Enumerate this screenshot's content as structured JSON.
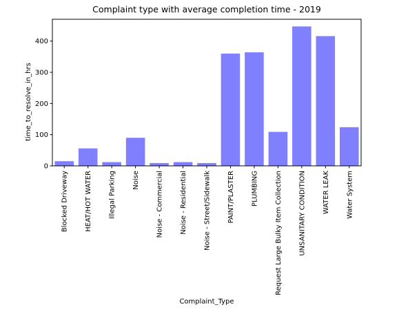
{
  "chart_data": {
    "type": "bar",
    "title": "Complaint type with average completion time - 2019",
    "xlabel": "Complaint_Type",
    "ylabel": "time_to_resolve_in_hrs",
    "ylim": [
      0,
      470
    ],
    "yticks": [
      0,
      100,
      200,
      300,
      400
    ],
    "grid": false,
    "bar_color": "#8080ff",
    "categories": [
      "Blocked Driveway",
      "HEAT/HOT WATER",
      "Illegal Parking",
      "Noise",
      "Noise - Commercial",
      "Noise - Residential",
      "Noise - Street/Sidewalk",
      "PAINT/PLASTER",
      "PLUMBING",
      "Request Large Bulky Item Collection",
      "UNSANITARY CONDITION",
      "WATER LEAK",
      "Water System"
    ],
    "values": [
      15,
      56,
      12,
      90,
      9,
      12,
      9,
      360,
      364,
      109,
      447,
      416,
      124
    ]
  }
}
